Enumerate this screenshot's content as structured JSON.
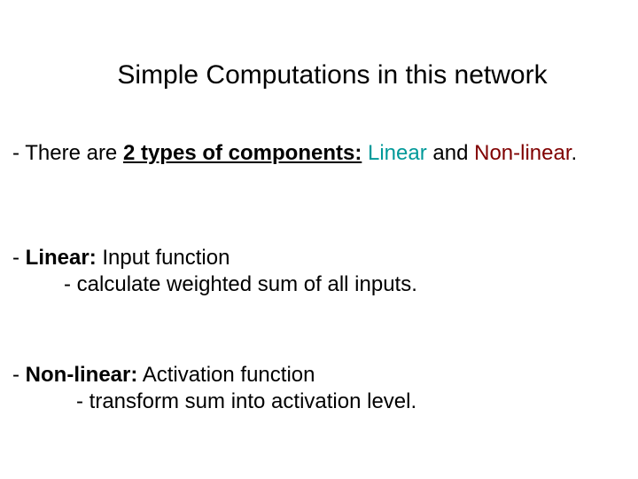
{
  "title": "Simple Computations in this network",
  "intro": {
    "prefix": "- There are ",
    "bold_underline": "2 types of components:",
    "space": " ",
    "linear_word": "Linear",
    "and_word": " and ",
    "nonlinear_word": "Non-linear",
    "period": "."
  },
  "section1": {
    "heading_prefix": "- ",
    "heading_bold": "Linear:",
    "heading_suffix": " Input function",
    "bullet": "- calculate weighted sum of all inputs."
  },
  "section2": {
    "heading_prefix": "- ",
    "heading_bold": "Non-linear:",
    "heading_suffix": " Activation function",
    "bullet": "- transform sum into activation level."
  },
  "colors": {
    "background": "#ffffff",
    "text": "#000000",
    "linear": "#009999",
    "nonlinear": "#800000"
  },
  "typography": {
    "title_fontsize": 30,
    "body_fontsize": 24,
    "font_family": "Arial"
  }
}
